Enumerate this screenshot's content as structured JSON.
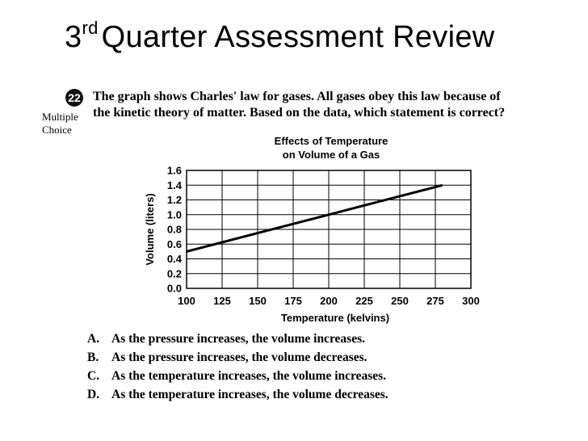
{
  "slide": {
    "title_prefix": "3",
    "title_superscript": "rd",
    "title_main": "Quarter Assessment Review"
  },
  "question": {
    "number": "22",
    "type_line1": "Multiple",
    "type_line2": "Choice",
    "text_line1": "The graph shows Charles' law for gases. All gases obey this law because of",
    "text_line2": "the kinetic theory of matter. Based on the data, which statement is correct?"
  },
  "chart_data": {
    "type": "line",
    "title_line1": "Effects of Temperature",
    "title_line2": "on Volume of a Gas",
    "xlabel": "Temperature (kelvins)",
    "ylabel": "Volume (liters)",
    "xlim": [
      100,
      300
    ],
    "ylim": [
      0.0,
      1.6
    ],
    "x_ticks": [
      "100",
      "125",
      "150",
      "175",
      "200",
      "225",
      "250",
      "275",
      "300"
    ],
    "y_ticks": [
      "0.0",
      "0.2",
      "0.4",
      "0.6",
      "0.8",
      "1.0",
      "1.2",
      "1.4",
      "1.6"
    ],
    "grid": true,
    "series": [
      {
        "x": [
          100,
          125,
          150,
          175,
          200,
          225,
          250,
          280
        ],
        "y": [
          0.5,
          0.625,
          0.75,
          0.875,
          1.0,
          1.125,
          1.25,
          1.4
        ]
      }
    ]
  },
  "answers": [
    {
      "letter": "A.",
      "text": "As the pressure increases, the volume increases."
    },
    {
      "letter": "B.",
      "text": "As the pressure increases, the volume decreases."
    },
    {
      "letter": "C.",
      "text": "As the temperature increases, the volume increases."
    },
    {
      "letter": "D.",
      "text": "As the temperature increases, the volume decreases."
    }
  ]
}
